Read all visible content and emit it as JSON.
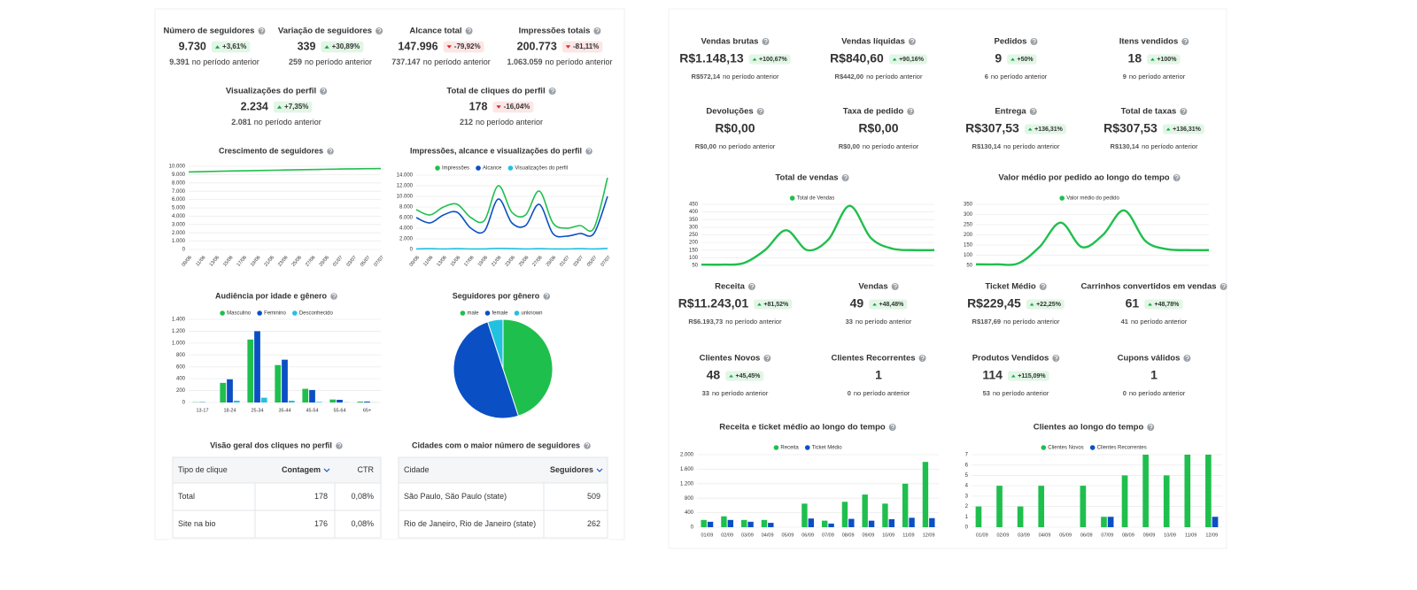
{
  "previous_text": "no período anterior",
  "instagram": {
    "kpis": [
      {
        "label": "Número de seguidores",
        "value": "9.730",
        "change": "+3,61%",
        "trend": "up",
        "previous": "9.391"
      },
      {
        "label": "Variação de seguidores",
        "value": "339",
        "change": "+30,89%",
        "trend": "up",
        "previous": "259"
      },
      {
        "label": "Alcance total",
        "value": "147.996",
        "change": "-79,92%",
        "trend": "down",
        "previous": "737.147"
      },
      {
        "label": "Impressões totais",
        "value": "200.773",
        "change": "-81,11%",
        "trend": "down",
        "previous": "1.063.059"
      },
      {
        "label": "Visualizações do perfil",
        "value": "2.234",
        "change": "+7,35%",
        "trend": "up",
        "previous": "2.081"
      },
      {
        "label": "Total de cliques do perfil",
        "value": "178",
        "change": "-16,04%",
        "trend": "down",
        "previous": "212"
      }
    ],
    "charts": [
      {
        "type": "line",
        "title": "Crescimento de seguidores",
        "categories": [
          "09/06",
          "11/06",
          "13/06",
          "15/06",
          "17/06",
          "19/06",
          "21/06",
          "23/06",
          "25/06",
          "27/06",
          "29/06",
          "01/07",
          "03/07",
          "05/07",
          "07/07"
        ],
        "series": [
          {
            "color": "#1fbf4d",
            "values": [
              9320,
              9360,
              9400,
              9430,
              9460,
              9490,
              9520,
              9550,
              9580,
              9610,
              9640,
              9670,
              9690,
              9710,
              9730
            ]
          }
        ],
        "ylim": [
          0,
          10000
        ],
        "yticks": [
          0,
          {
            "value": 1000,
            "label": "1.000"
          },
          {
            "value": 2000,
            "label": "2.000"
          },
          {
            "value": 3000,
            "label": "3.000"
          },
          {
            "value": 4000,
            "label": "4.000"
          },
          {
            "value": 5000,
            "label": "5.000"
          },
          {
            "value": 6000,
            "label": "6.000"
          },
          {
            "value": 7000,
            "label": "7.000"
          },
          {
            "value": 8000,
            "label": "8.000"
          },
          {
            "value": 9000,
            "label": "9.000"
          },
          {
            "value": 10000,
            "label": "10.000"
          }
        ]
      },
      {
        "type": "line",
        "title": "Impressões, alcance e visualizações do perfil",
        "categories": [
          "09/06",
          "11/06",
          "13/06",
          "15/06",
          "17/06",
          "19/06",
          "21/06",
          "23/06",
          "25/06",
          "27/06",
          "29/06",
          "01/07",
          "03/07",
          "05/07",
          "07/07"
        ],
        "series": [
          {
            "name": "Impressões",
            "color": "#1fbf4d",
            "values": [
              7500,
              6500,
              8000,
              8500,
              6000,
              5500,
              12000,
              7000,
              6500,
              11000,
              5000,
              4000,
              4500,
              4000,
              13500
            ]
          },
          {
            "name": "Alcance",
            "color": "#0b4fc4",
            "values": [
              6000,
              5000,
              6500,
              7000,
              4000,
              3500,
              9500,
              5000,
              4500,
              8500,
              3000,
              2500,
              3000,
              3000,
              10000
            ]
          },
          {
            "name": "Visualizações do perfil",
            "color": "#22c1e0",
            "values": [
              100,
              150,
              100,
              150,
              100,
              100,
              200,
              150,
              100,
              150,
              100,
              100,
              150,
              100,
              200
            ]
          }
        ],
        "ylim": [
          0,
          14000
        ],
        "yticks": [
          0,
          {
            "value": 2000,
            "label": "2.000"
          },
          {
            "value": 4000,
            "label": "4.000"
          },
          {
            "value": 6000,
            "label": "6.000"
          },
          {
            "value": 8000,
            "label": "8.000"
          },
          {
            "value": 10000,
            "label": "10.000"
          },
          {
            "value": 12000,
            "label": "12.000"
          },
          {
            "value": 14000,
            "label": "14.000"
          }
        ]
      },
      {
        "type": "bar",
        "title": "Audiência por idade e gênero",
        "categories": [
          "13-17",
          "18-24",
          "25-34",
          "35-44",
          "45-54",
          "55-64",
          "65+"
        ],
        "series": [
          {
            "name": "Masculino",
            "color": "#1fbf4d",
            "values": [
              5,
              330,
              1060,
              630,
              230,
              50,
              15
            ]
          },
          {
            "name": "Feminino",
            "color": "#0b4fc4",
            "values": [
              5,
              390,
              1200,
              720,
              210,
              45,
              15
            ]
          },
          {
            "name": "Desconhecido",
            "color": "#22c1e0",
            "values": [
              0,
              30,
              80,
              30,
              10,
              3,
              2
            ]
          }
        ],
        "ylim": [
          0,
          1400
        ],
        "yticks": [
          0,
          200,
          400,
          600,
          800,
          {
            "value": 1000,
            "label": "1.000"
          },
          {
            "value": 1200,
            "label": "1.200"
          },
          {
            "value": 1400,
            "label": "1.400"
          }
        ]
      },
      {
        "type": "pie",
        "title": "Seguidores por gênero",
        "categories": [
          "male",
          "female",
          "unknown"
        ],
        "values": [
          45,
          50,
          5
        ],
        "colors": [
          "#1fbf4d",
          "#0b4fc4",
          "#22c1e0"
        ]
      }
    ],
    "tables": [
      {
        "title": "Visão geral dos cliques no perfil",
        "columns": [
          "Tipo de clique",
          "Contagem",
          "CTR"
        ],
        "sorted_column": 1,
        "rows": [
          [
            "Total",
            178,
            "0,08%"
          ],
          [
            "Site na bio",
            176,
            "0,08%"
          ]
        ]
      },
      {
        "title": "Cidades com o maior número de seguidores",
        "columns": [
          "Cidade",
          "Seguidores"
        ],
        "sorted_column": 1,
        "rows": [
          [
            "São Paulo, São Paulo (state)",
            509
          ],
          [
            "Rio de Janeiro, Rio de Janeiro (state)",
            262
          ]
        ]
      }
    ]
  },
  "store": {
    "kpis": [
      {
        "label": "Vendas brutas",
        "value": "R$1.148,13",
        "change": "+100,67%",
        "trend": "up",
        "previous": "R$572,14"
      },
      {
        "label": "Vendas líquidas",
        "value": "R$840,60",
        "change": "+90,16%",
        "trend": "up",
        "previous": "R$442,00"
      },
      {
        "label": "Pedidos",
        "value": "9",
        "change": "+50%",
        "trend": "up",
        "previous": "6"
      },
      {
        "label": "Itens vendidos",
        "value": "18",
        "change": "+100%",
        "trend": "up",
        "previous": "9"
      },
      {
        "label": "Devoluções",
        "value": "R$0,00",
        "previous": "R$0,00"
      },
      {
        "label": "Taxa de pedido",
        "value": "R$0,00",
        "previous": "R$0,00"
      },
      {
        "label": "Entrega",
        "value": "R$307,53",
        "change": "+136,31%",
        "trend": "up",
        "previous": "R$130,14"
      },
      {
        "label": "Total de taxas",
        "value": "R$307,53",
        "change": "+136,31%",
        "trend": "up",
        "previous": "R$130,14"
      },
      {
        "label": "Receita",
        "value": "R$11.243,01",
        "change": "+81,52%",
        "trend": "up",
        "previous": "R$6.193,73"
      },
      {
        "label": "Vendas",
        "value": "49",
        "change": "+48,48%",
        "trend": "up",
        "previous": "33"
      },
      {
        "label": "Ticket Médio",
        "value": "R$229,45",
        "change": "+22,25%",
        "trend": "up",
        "previous": "R$187,69"
      },
      {
        "label": "Carrinhos convertidos em vendas",
        "value": "61",
        "change": "+48,78%",
        "trend": "up",
        "previous": "41"
      },
      {
        "label": "Clientes Novos",
        "value": "48",
        "change": "+45,45%",
        "trend": "up",
        "previous": "33"
      },
      {
        "label": "Clientes Recorrentes",
        "value": "1",
        "previous": "0"
      },
      {
        "label": "Produtos Vendidos",
        "value": "114",
        "change": "+115,09%",
        "trend": "up",
        "previous": "53"
      },
      {
        "label": "Cupons válidos",
        "value": "1",
        "previous": "0"
      }
    ],
    "charts": [
      {
        "type": "line",
        "title": "Total de vendas",
        "series": [
          {
            "name": "Total de Vendas",
            "color": "#1fbf4d",
            "values": [
              55,
              55,
              65,
              150,
              280,
              150,
              220,
              440,
              230,
              160,
              150,
              150
            ]
          }
        ],
        "ylim": [
          50,
          450
        ],
        "yticks": [
          50,
          100,
          150,
          200,
          250,
          300,
          350,
          400,
          450
        ]
      },
      {
        "type": "line",
        "title": "Valor médio por pedido ao longo do tempo",
        "series": [
          {
            "name": "Valor médio do pedido",
            "color": "#1fbf4d",
            "values": [
              55,
              55,
              60,
              140,
              260,
              140,
              200,
              320,
              170,
              130,
              125,
              125
            ]
          }
        ],
        "ylim": [
          50,
          350
        ],
        "yticks": [
          50,
          100,
          150,
          200,
          250,
          300,
          350
        ]
      },
      {
        "type": "bar",
        "title": "Receita e ticket médio ao longo do tempo",
        "categories": [
          "01/09",
          "02/09",
          "03/09",
          "04/09",
          "05/09",
          "06/09",
          "07/09",
          "08/09",
          "09/09",
          "10/09",
          "11/09",
          "12/09"
        ],
        "series": [
          {
            "name": "Receita",
            "color": "#1fbf4d",
            "values": [
              200,
              300,
              200,
              200,
              0,
              650,
              180,
              700,
              900,
              650,
              1200,
              1800
            ]
          },
          {
            "name": "Ticket Médio",
            "color": "#0b4fc4",
            "values": [
              150,
              200,
              150,
              120,
              0,
              240,
              100,
              230,
              180,
              220,
              260,
              250
            ]
          }
        ],
        "ylim": [
          0,
          2000
        ],
        "yticks": [
          0,
          400,
          800,
          {
            "value": 1200,
            "label": "1.200"
          },
          {
            "value": 1600,
            "label": "1.600"
          },
          {
            "value": 2000,
            "label": "2.000"
          }
        ]
      },
      {
        "type": "bar",
        "title": "Clientes ao longo do tempo",
        "categories": [
          "01/09",
          "02/09",
          "03/09",
          "04/09",
          "05/09",
          "06/09",
          "07/09",
          "08/09",
          "09/09",
          "10/09",
          "11/09",
          "12/09"
        ],
        "series": [
          {
            "name": "Clientes Novos",
            "color": "#1fbf4d",
            "values": [
              2,
              4,
              2,
              4,
              0,
              4,
              1,
              5,
              7,
              5,
              7,
              7
            ]
          },
          {
            "name": "Clientes Recorrentes",
            "color": "#0b4fc4",
            "values": [
              0,
              0,
              0,
              0,
              0,
              0,
              1,
              0,
              0,
              0,
              0,
              1
            ]
          }
        ],
        "ylim": [
          0,
          7
        ],
        "yticks": [
          0,
          1,
          2,
          3,
          4,
          5,
          6,
          7
        ]
      }
    ]
  }
}
